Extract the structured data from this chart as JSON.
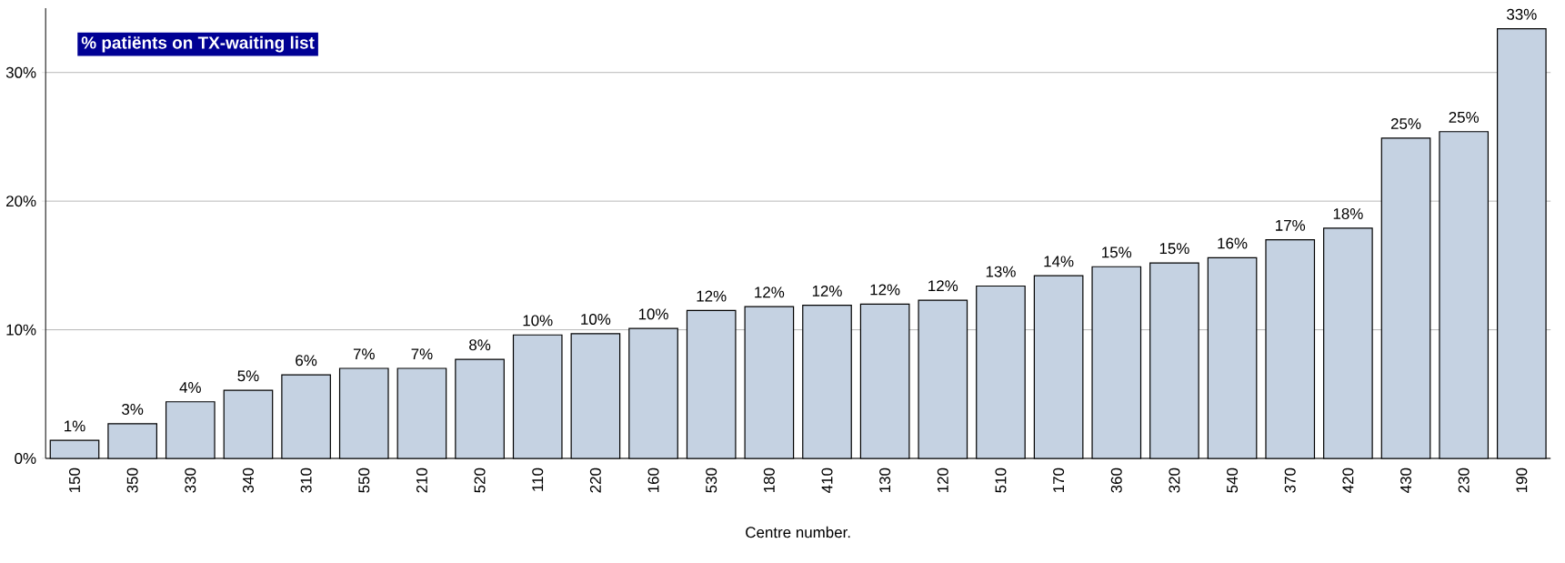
{
  "chart_data": {
    "type": "bar",
    "title": "% patiënts on TX-waiting list",
    "xlabel": "Centre number.",
    "categories": [
      "150",
      "350",
      "330",
      "340",
      "310",
      "550",
      "210",
      "520",
      "110",
      "220",
      "160",
      "530",
      "180",
      "410",
      "130",
      "120",
      "510",
      "170",
      "360",
      "320",
      "540",
      "370",
      "420",
      "430",
      "230",
      "190"
    ],
    "values": [
      1.4,
      2.7,
      4.4,
      5.3,
      6.5,
      7.0,
      7.0,
      7.7,
      9.6,
      9.7,
      10.1,
      11.5,
      11.8,
      11.9,
      12.0,
      12.3,
      13.4,
      14.2,
      14.9,
      15.2,
      15.6,
      17.0,
      17.9,
      24.9,
      25.4,
      33.4
    ],
    "value_labels": [
      "1%",
      "3%",
      "4%",
      "5%",
      "6%",
      "7%",
      "7%",
      "8%",
      "10%",
      "10%",
      "10%",
      "12%",
      "12%",
      "12%",
      "12%",
      "12%",
      "13%",
      "14%",
      "15%",
      "15%",
      "16%",
      "17%",
      "18%",
      "25%",
      "25%",
      "33%"
    ],
    "color": "#c5d2e2",
    "ylim": [
      0,
      35
    ],
    "yticks": [
      {
        "value": 0,
        "label": "0%"
      },
      {
        "value": 10,
        "label": "10%"
      },
      {
        "value": 20,
        "label": "20%"
      },
      {
        "value": 30,
        "label": "30%"
      }
    ],
    "grid": "y"
  }
}
